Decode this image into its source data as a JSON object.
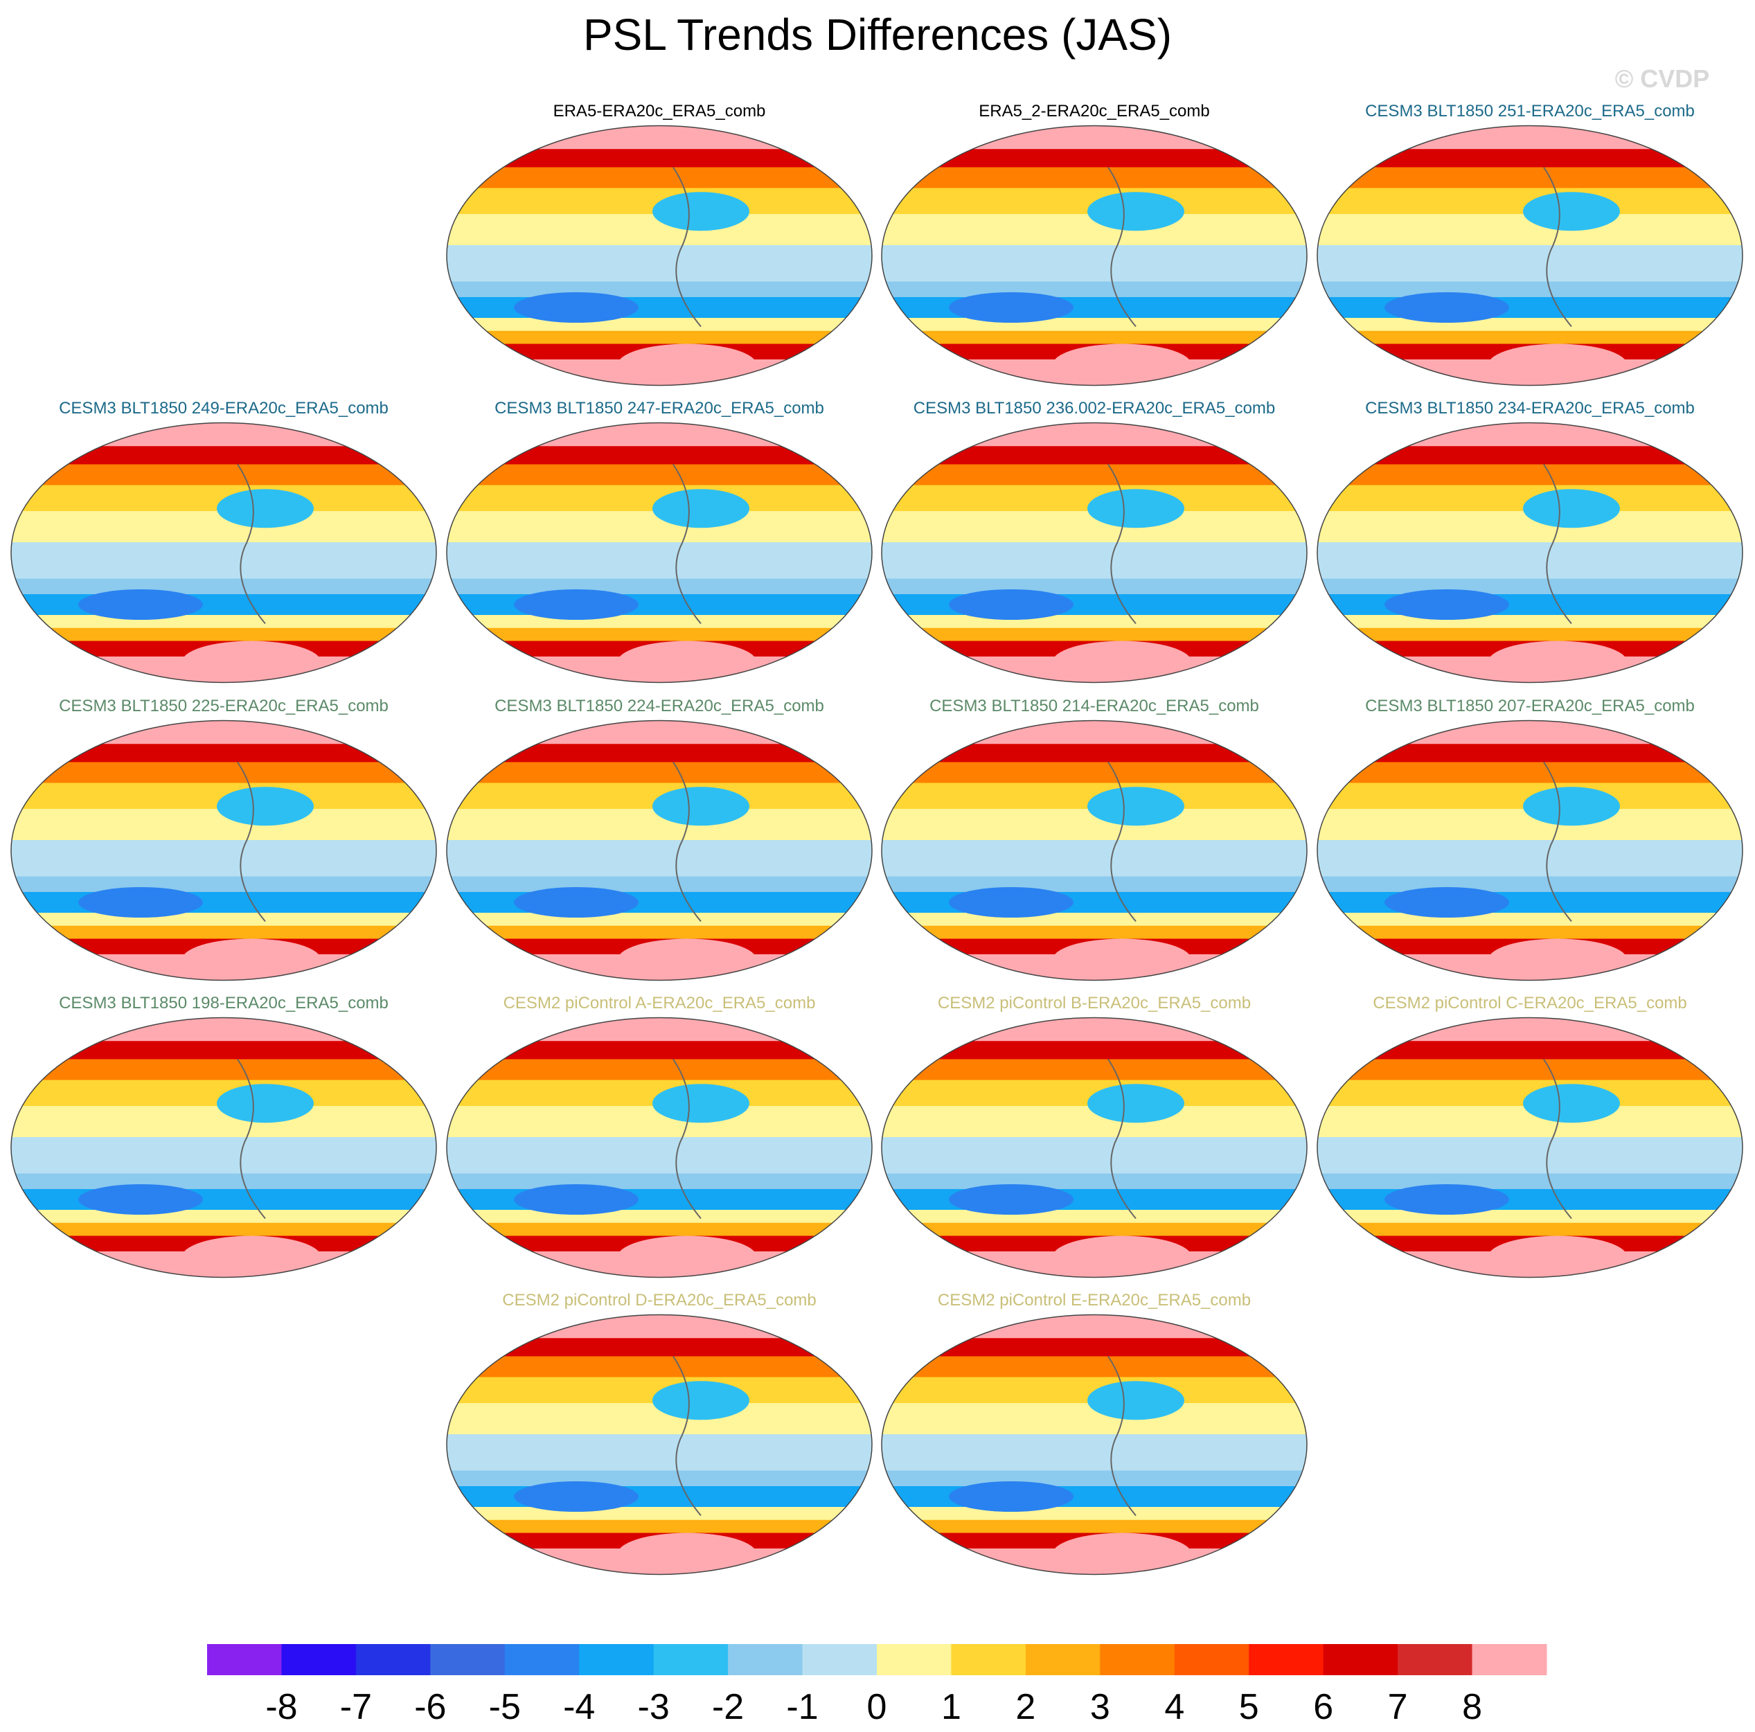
{
  "title": "PSL Trends Differences (JAS)",
  "watermark": "© CVDP",
  "panels": [
    {
      "title": "ERA5-ERA20c_ERA5_comb",
      "row": 0,
      "col": 1,
      "title_color": "#000000"
    },
    {
      "title": "ERA5_2-ERA20c_ERA5_comb",
      "row": 0,
      "col": 2,
      "title_color": "#000000"
    },
    {
      "title": "CESM3 BLT1850 251-ERA20c_ERA5_comb",
      "row": 0,
      "col": 3,
      "title_color": "#1c6a8a"
    },
    {
      "title": "CESM3 BLT1850 249-ERA20c_ERA5_comb",
      "row": 1,
      "col": 0,
      "title_color": "#1c6a8a"
    },
    {
      "title": "CESM3 BLT1850 247-ERA20c_ERA5_comb",
      "row": 1,
      "col": 1,
      "title_color": "#1c6a8a"
    },
    {
      "title": "CESM3 BLT1850 236.002-ERA20c_ERA5_comb",
      "row": 1,
      "col": 2,
      "title_color": "#1c6a8a"
    },
    {
      "title": "CESM3 BLT1850 234-ERA20c_ERA5_comb",
      "row": 1,
      "col": 3,
      "title_color": "#1c6a8a"
    },
    {
      "title": "CESM3 BLT1850 225-ERA20c_ERA5_comb",
      "row": 2,
      "col": 0,
      "title_color": "#5b8a68"
    },
    {
      "title": "CESM3 BLT1850 224-ERA20c_ERA5_comb",
      "row": 2,
      "col": 1,
      "title_color": "#5b8a68"
    },
    {
      "title": "CESM3 BLT1850 214-ERA20c_ERA5_comb",
      "row": 2,
      "col": 2,
      "title_color": "#5b8a68"
    },
    {
      "title": "CESM3 BLT1850 207-ERA20c_ERA5_comb",
      "row": 2,
      "col": 3,
      "title_color": "#5b8a68"
    },
    {
      "title": "CESM3 BLT1850 198-ERA20c_ERA5_comb",
      "row": 3,
      "col": 0,
      "title_color": "#5b8a68"
    },
    {
      "title": "CESM2 piControl A-ERA20c_ERA5_comb",
      "row": 3,
      "col": 1,
      "title_color": "#c9bf78"
    },
    {
      "title": "CESM2 piControl B-ERA20c_ERA5_comb",
      "row": 3,
      "col": 2,
      "title_color": "#c9bf78"
    },
    {
      "title": "CESM2 piControl C-ERA20c_ERA5_comb",
      "row": 3,
      "col": 3,
      "title_color": "#c9bf78"
    },
    {
      "title": "CESM2 piControl D-ERA20c_ERA5_comb",
      "row": 4,
      "col": 1,
      "title_color": "#c9bf78"
    },
    {
      "title": "CESM2 piControl E-ERA20c_ERA5_comb",
      "row": 4,
      "col": 2,
      "title_color": "#c9bf78"
    }
  ],
  "colorbar": {
    "colors": [
      "#8a22ef",
      "#2a0cf5",
      "#2433e6",
      "#3a6ae0",
      "#2a82f0",
      "#12a6f5",
      "#2ebff2",
      "#8ccaee",
      "#b8e0f2",
      "#fff59a",
      "#ffd633",
      "#ffb012",
      "#ff8000",
      "#ff5a00",
      "#ff1a00",
      "#d90000",
      "#d42a2a",
      "#ffaab0"
    ],
    "ticks": [
      -8,
      -7,
      -6,
      -5,
      -4,
      -3,
      -2,
      -1,
      0,
      1,
      2,
      3,
      4,
      5,
      6,
      7,
      8
    ]
  }
}
